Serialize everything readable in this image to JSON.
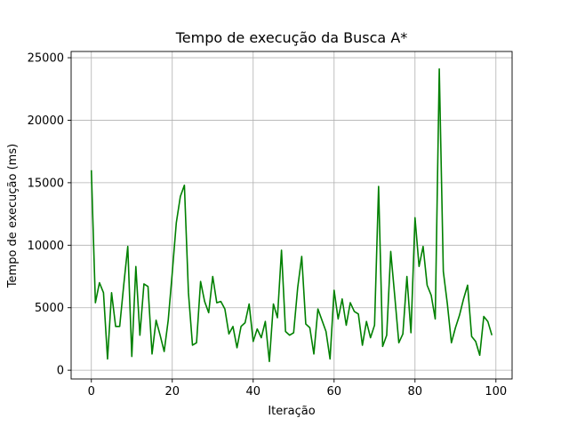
{
  "chart_data": {
    "type": "line",
    "title": "Tempo de execução da Busca A*",
    "xlabel": "Iteração",
    "ylabel": "Tempo de execução (ms)",
    "xlim": [
      -5,
      104
    ],
    "ylim": [
      -700,
      25500
    ],
    "x_ticks": [
      0,
      20,
      40,
      60,
      80,
      100
    ],
    "y_ticks": [
      0,
      5000,
      10000,
      15000,
      20000,
      25000
    ],
    "grid": true,
    "series": [
      {
        "color": "#008000",
        "x": [
          0,
          1,
          2,
          3,
          4,
          5,
          6,
          7,
          8,
          9,
          10,
          11,
          12,
          13,
          14,
          15,
          16,
          17,
          18,
          19,
          20,
          21,
          22,
          23,
          24,
          25,
          26,
          27,
          28,
          29,
          30,
          31,
          32,
          33,
          34,
          35,
          36,
          37,
          38,
          39,
          40,
          41,
          42,
          43,
          44,
          45,
          46,
          47,
          48,
          49,
          50,
          51,
          52,
          53,
          54,
          55,
          56,
          57,
          58,
          59,
          60,
          61,
          62,
          63,
          64,
          65,
          66,
          67,
          68,
          69,
          70,
          71,
          72,
          73,
          74,
          75,
          76,
          77,
          78,
          79,
          80,
          81,
          82,
          83,
          84,
          85,
          86,
          87,
          88,
          89,
          90,
          91,
          92,
          93,
          94,
          95,
          96,
          97,
          98,
          99
        ],
        "values": [
          16000,
          5400,
          7000,
          6200,
          900,
          6200,
          3500,
          3500,
          6800,
          9900,
          1100,
          8300,
          2800,
          6900,
          6700,
          1300,
          4000,
          2800,
          1500,
          4000,
          7800,
          11800,
          13900,
          14800,
          6200,
          2000,
          2200,
          7100,
          5500,
          4600,
          7500,
          5400,
          5500,
          4900,
          2900,
          3500,
          1800,
          3500,
          3800,
          5300,
          2300,
          3300,
          2600,
          3900,
          700,
          5300,
          4200,
          9600,
          3100,
          2800,
          3000,
          6600,
          9100,
          3700,
          3400,
          1300,
          4900,
          4000,
          3100,
          900,
          6400,
          4100,
          5700,
          3600,
          5400,
          4700,
          4500,
          2000,
          3900,
          2600,
          3600,
          14700,
          1900,
          2800,
          9500,
          5900,
          2200,
          2900,
          7500,
          3000,
          12200,
          8300,
          9900,
          6800,
          6000,
          4100,
          24100,
          7900,
          5300,
          2200,
          3400,
          4400,
          5700,
          6800,
          2700,
          2300,
          1200,
          4300,
          3900,
          2800
        ]
      }
    ]
  }
}
